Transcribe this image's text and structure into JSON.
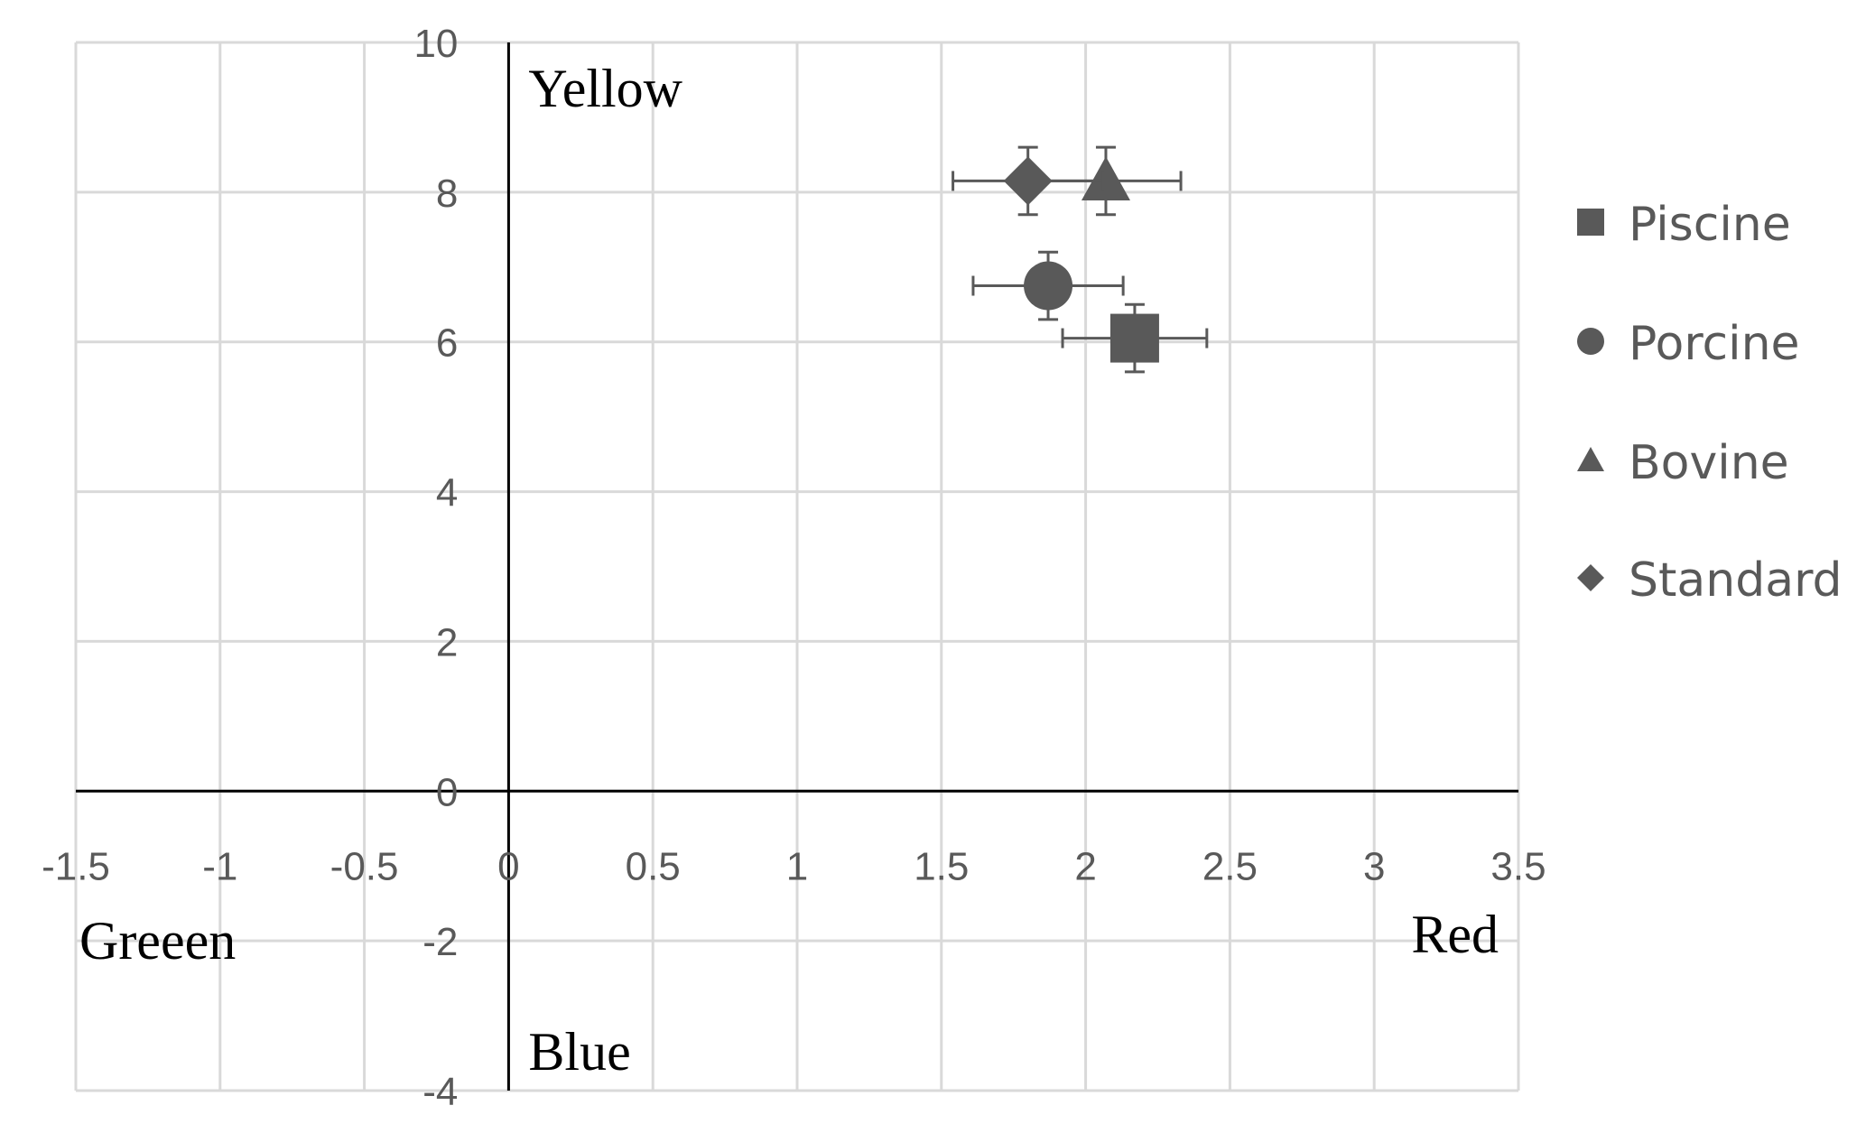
{
  "chart_data": {
    "type": "scatter",
    "x_range": [
      -1.5,
      3.5
    ],
    "y_range": [
      -4,
      10
    ],
    "x_ticks": [
      "-1.5",
      "-1",
      "-0.5",
      "0",
      "0.5",
      "1",
      "1.5",
      "2",
      "2.5",
      "3",
      "3.5"
    ],
    "y_ticks": [
      "-4",
      "-2",
      "0",
      "2",
      "4",
      "6",
      "8",
      "10"
    ],
    "grid": true,
    "legend_position": "right",
    "quadrant_labels": {
      "top": "Yellow",
      "bottom": "Blue",
      "left": "Greeen",
      "right": "Red"
    },
    "series": [
      {
        "name": "Piscine",
        "marker": "square",
        "x": 2.17,
        "y": 6.05,
        "x_err": 0.25,
        "y_err": 0.45
      },
      {
        "name": "Porcine",
        "marker": "circle",
        "x": 1.87,
        "y": 6.75,
        "x_err": 0.26,
        "y_err": 0.45
      },
      {
        "name": "Bovine",
        "marker": "triangle",
        "x": 2.07,
        "y": 8.15,
        "x_err": 0.26,
        "y_err": 0.45
      },
      {
        "name": "Standard",
        "marker": "diamond",
        "x": 1.8,
        "y": 8.15,
        "x_err": 0.26,
        "y_err": 0.45
      }
    ],
    "colors": {
      "marker": "#595959",
      "grid": "#d9d9d9",
      "axis": "#000000",
      "tick_text": "#595959"
    }
  }
}
